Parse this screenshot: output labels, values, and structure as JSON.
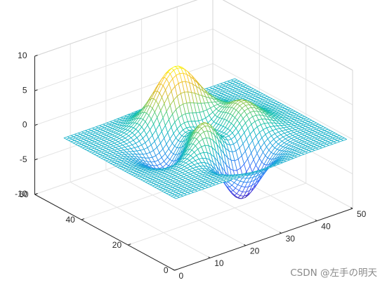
{
  "chart_data": {
    "type": "surface",
    "style": "mesh",
    "function": "peaks",
    "grid_size": [
      49,
      49
    ],
    "xlim": [
      0,
      50
    ],
    "ylim": [
      0,
      60
    ],
    "zlim": [
      -10,
      10
    ],
    "x_ticks": [
      "0",
      "10",
      "20",
      "30",
      "40",
      "50"
    ],
    "y_ticks": [
      "0",
      "20",
      "40",
      "60"
    ],
    "z_ticks": [
      "-10",
      "-5",
      "0",
      "5",
      "10"
    ],
    "z_range": [
      -6.55,
      8.1
    ],
    "colormap": "parula",
    "grid": true,
    "title": "",
    "xlabel": "",
    "ylabel": "",
    "zlabel": ""
  },
  "watermark": "CSDN @左手の明天"
}
